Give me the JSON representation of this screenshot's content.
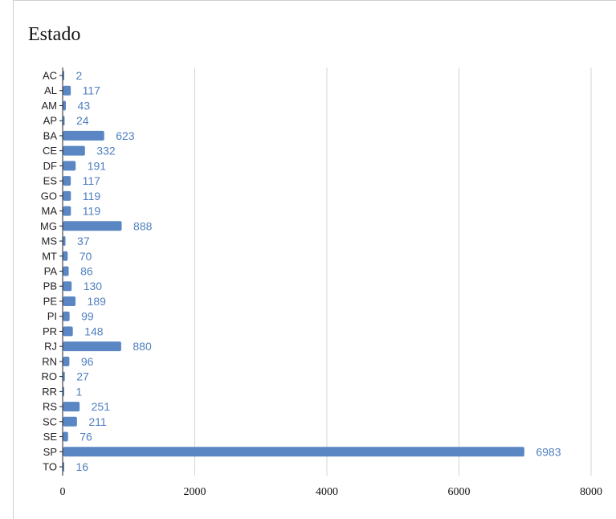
{
  "chart_data": {
    "type": "bar",
    "orientation": "horizontal",
    "title": "Estado",
    "xlabel": "",
    "ylabel": "",
    "xlim": [
      0,
      8000
    ],
    "x_ticks": [
      0,
      2000,
      4000,
      6000,
      8000
    ],
    "grid": true,
    "legend": "none",
    "bar_color": "#5a86c4",
    "label_color": "#4f7fbf",
    "categories": [
      "AC",
      "AL",
      "AM",
      "AP",
      "BA",
      "CE",
      "DF",
      "ES",
      "GO",
      "MA",
      "MG",
      "MS",
      "MT",
      "PA",
      "PB",
      "PE",
      "PI",
      "PR",
      "RJ",
      "RN",
      "RO",
      "RR",
      "RS",
      "SC",
      "SE",
      "SP",
      "TO"
    ],
    "values": [
      2,
      117,
      43,
      24,
      623,
      332,
      191,
      117,
      119,
      119,
      888,
      37,
      70,
      86,
      130,
      189,
      99,
      148,
      880,
      96,
      27,
      1,
      251,
      211,
      76,
      6983,
      16
    ],
    "value_labels": [
      "2",
      "117",
      "43",
      "24",
      "623",
      "332",
      "191",
      "117",
      "119",
      "119",
      "888",
      "37",
      "70",
      "86",
      "130",
      "189",
      "99",
      "148",
      "880",
      "96",
      "27",
      "1",
      "251",
      "211",
      "76",
      "6983",
      "16"
    ]
  }
}
